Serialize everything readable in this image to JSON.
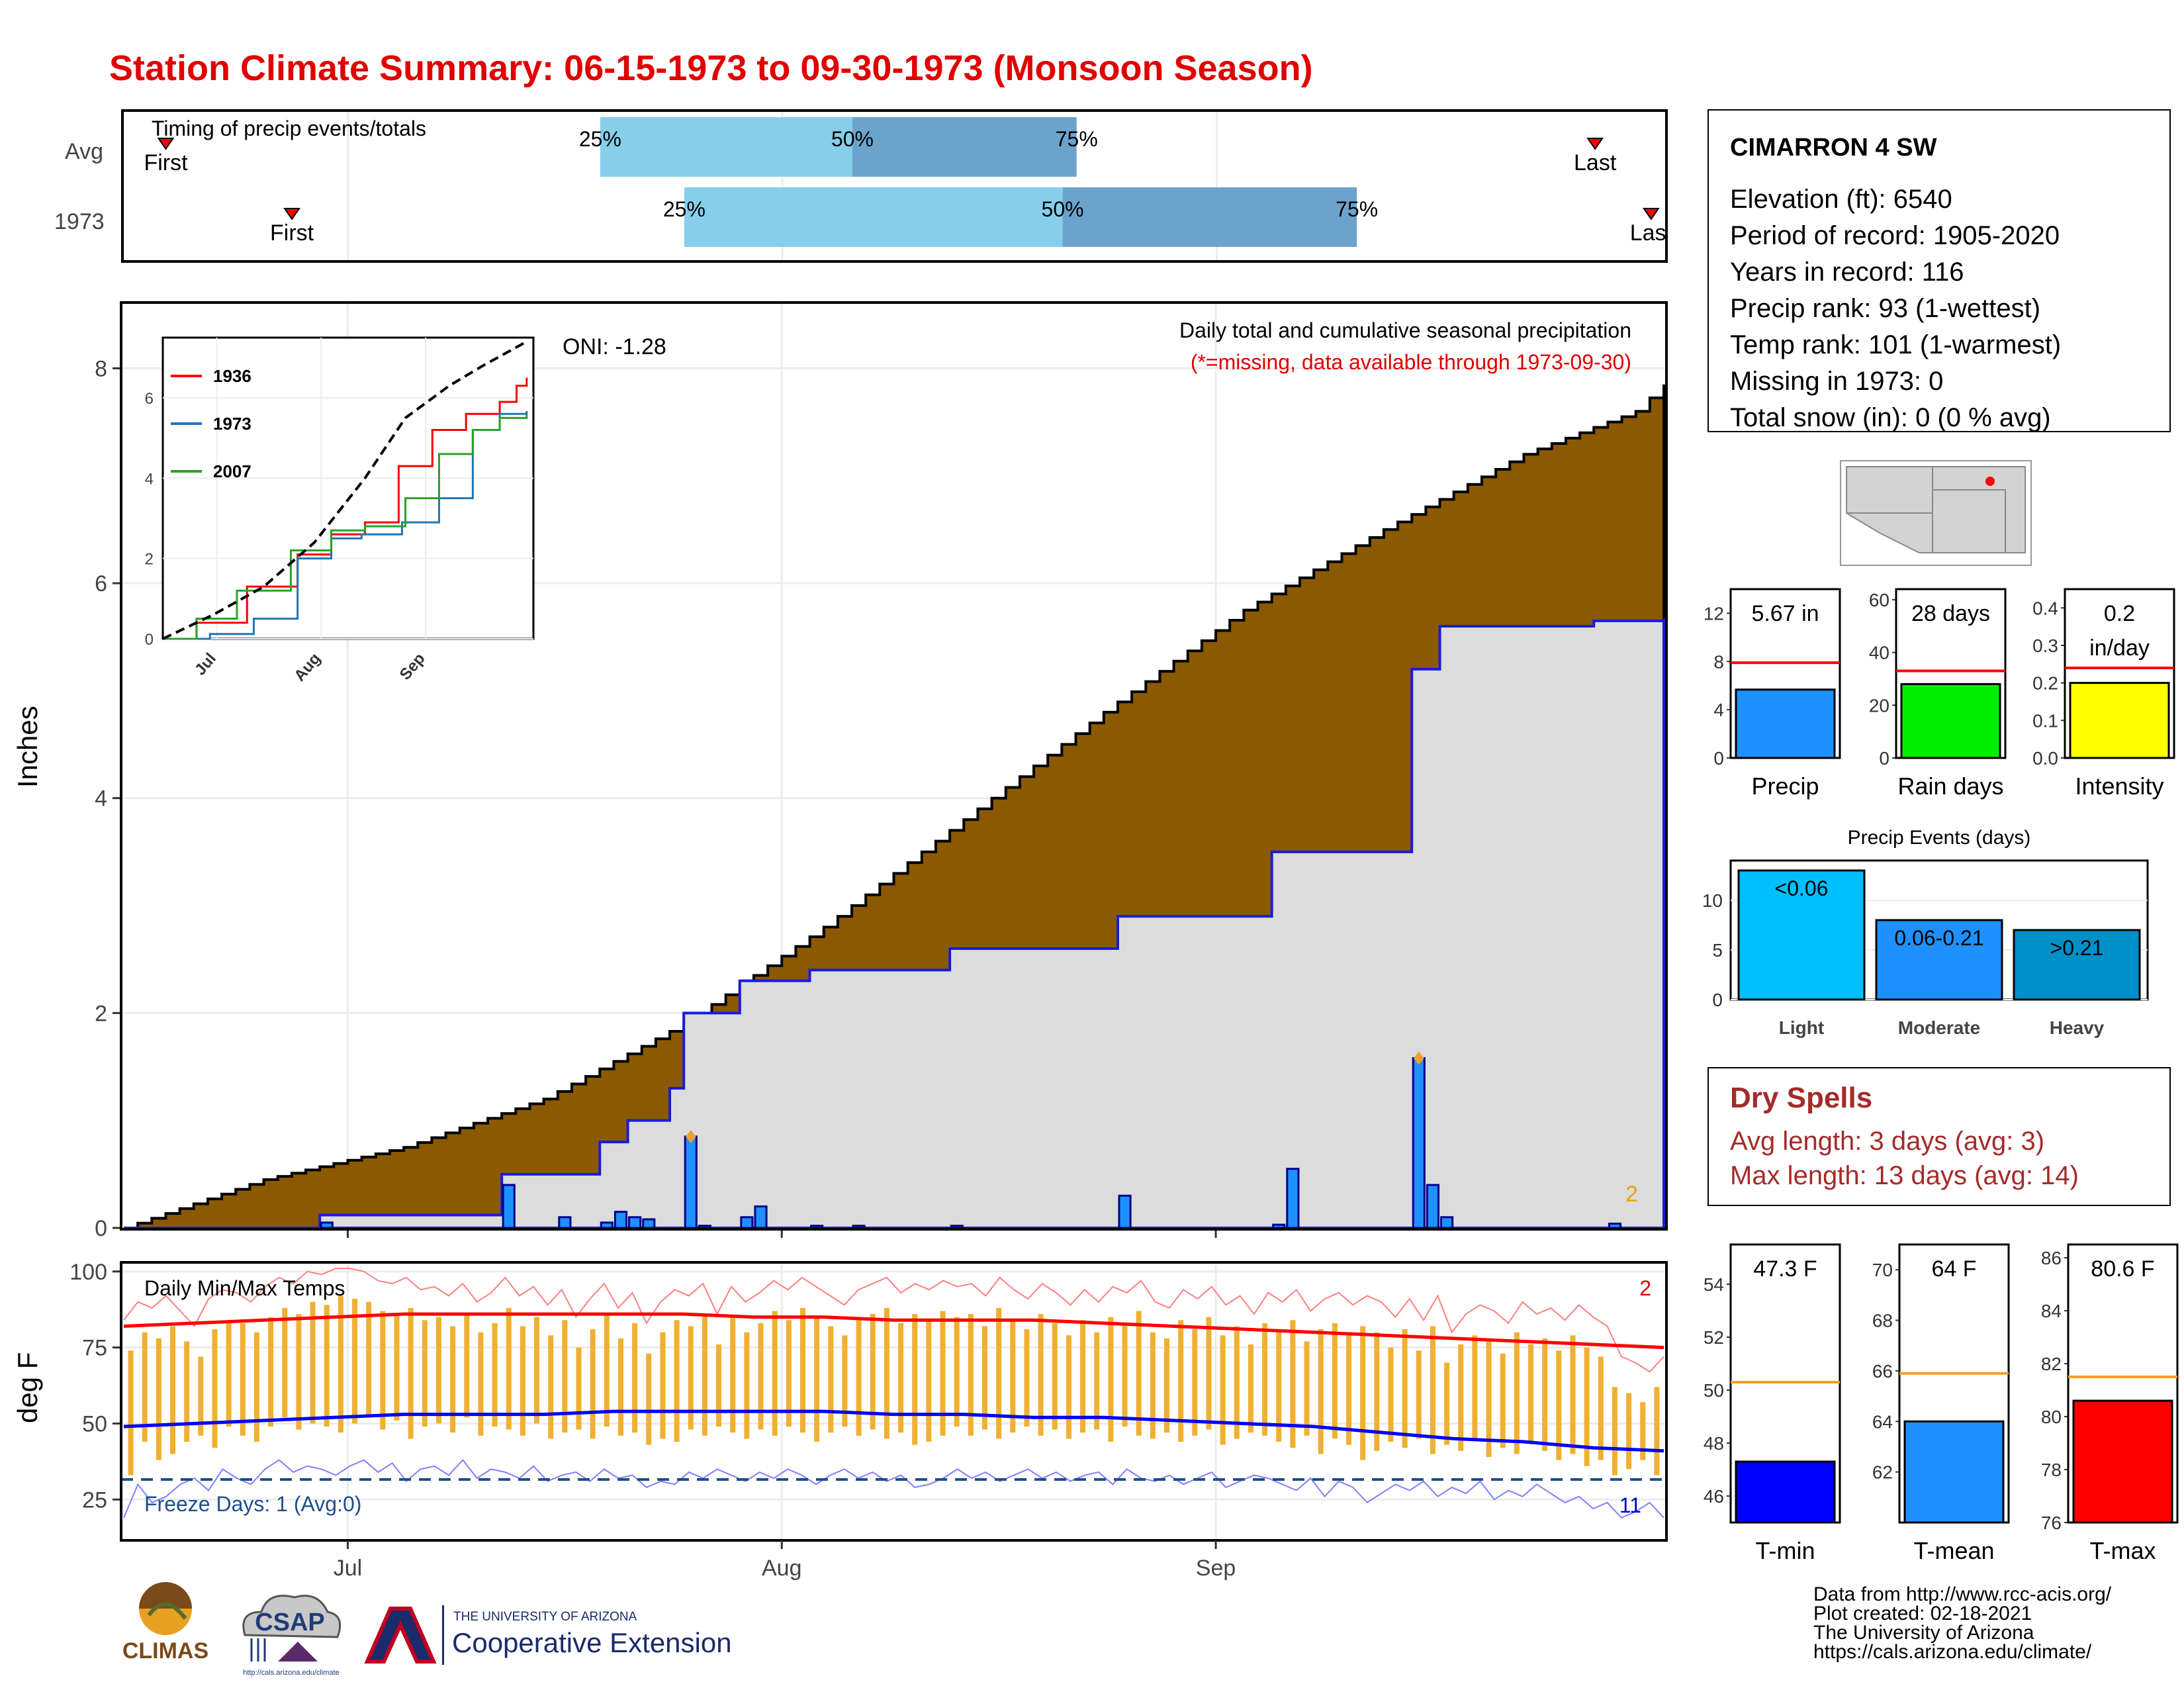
{
  "title": "Station Climate Summary: 06-15-1973 to 09-30-1973 (Monsoon Season)",
  "colors": {
    "title": "#e00000",
    "cum_avg": "#8b5a00",
    "cum_year": "#dcdcdc",
    "daily_bar": "#1e90ff",
    "line_blue": "#0000cc",
    "temp_bar": "#f0b030",
    "t_max": "#ff0000",
    "t_min": "#0000ff",
    "freeze": "#1f4e8c",
    "dry_spells": "#a52a2a"
  },
  "timing": {
    "label": "Timing of precip events/totals",
    "rows": [
      {
        "name": "Avg",
        "first_day": 3,
        "last_day": 105,
        "p25": 34,
        "p50": 52,
        "p75": 68,
        "first_label": "First",
        "last_label": "Last",
        "p25_label": "25%",
        "p50_label": "50%",
        "p75_label": "75%"
      },
      {
        "name": "1973",
        "first_day": 12,
        "last_day": 109,
        "p25": 40,
        "p50": 67,
        "p75": 88,
        "first_label": "First",
        "last_label": "Last",
        "p25_label": "25%",
        "p50_label": "50%",
        "p75_label": "75%"
      }
    ]
  },
  "main": {
    "title": "Daily total and cumulative seasonal precipitation",
    "subtitle": "(*=missing, data available through 1973-09-30)",
    "oni": "ONI: -1.28",
    "ylabel": "Inches",
    "yticks": [
      "0",
      "2",
      "4",
      "6",
      "8"
    ],
    "xticks": [
      "Jul",
      "Aug",
      "Sep"
    ],
    "corner_label": "2"
  },
  "temps": {
    "title": "Daily Min/Max Temps",
    "ylabel": "deg F",
    "yticks": [
      "25",
      "50",
      "75",
      "100"
    ],
    "freeze": "Freeze Days: 1 (Avg:0)",
    "max_count": "2",
    "min_count": "11"
  },
  "inset": {
    "legend": [
      "1936",
      "1973",
      "2007"
    ],
    "yticks": [
      "0",
      "2",
      "4",
      "6"
    ],
    "xticks": [
      "Jul",
      "Aug",
      "Sep"
    ]
  },
  "station": {
    "name": "CIMARRON 4 SW",
    "elevation": "Elevation (ft): 6540",
    "period": "Period of record: 1905-2020",
    "years": "Years in record: 116",
    "precip_rank": "Precip rank: 93 (1-wettest)",
    "temp_rank": "Temp rank: 101 (1-warmest)",
    "missing": "Missing in 1973: 0",
    "snow": "Total snow (in): 0 (0 % avg)"
  },
  "mini_bars": [
    {
      "label": "Precip",
      "value_label": "5.67 in",
      "value": 5.67,
      "avg": 7.9,
      "ymax": 14,
      "ticks": [
        "0",
        "4",
        "8",
        "12"
      ],
      "color": "#1e90ff"
    },
    {
      "label": "Rain days",
      "value_label": "28 days",
      "value": 28,
      "avg": 33,
      "ymax": 64,
      "ticks": [
        "0",
        "20",
        "40",
        "60"
      ],
      "color": "#00ee00"
    },
    {
      "label": "Intensity",
      "value_label": "0.2 in/day",
      "value": 0.2,
      "avg": 0.24,
      "ymax": 0.45,
      "ticks": [
        "0.0",
        "0.1",
        "0.2",
        "0.3",
        "0.4"
      ],
      "color": "#ffff00"
    }
  ],
  "precip_events": {
    "title": "Precip Events (days)",
    "categories": [
      "Light",
      "Moderate",
      "Heavy"
    ],
    "bar_labels": [
      "<0.06",
      "0.06-0.21",
      ">0.21"
    ],
    "values": [
      13,
      8,
      7
    ],
    "ticks": [
      "0",
      "5",
      "10"
    ],
    "colors": [
      "#00bfff",
      "#1e90ff",
      "#0090c8"
    ]
  },
  "dry_spells": {
    "title": "Dry Spells",
    "avg": "Avg length: 3 days (avg: 3)",
    "max": "Max length: 13 days (avg: 14)"
  },
  "temp_bars": [
    {
      "label": "T-min",
      "value_label": "47.3 F",
      "value": 47.3,
      "avg": 50.3,
      "ylim": [
        45,
        55.5
      ],
      "ticks": [
        "46",
        "48",
        "50",
        "52",
        "54"
      ],
      "color": "#0000ff"
    },
    {
      "label": "T-mean",
      "value_label": "64 F",
      "value": 64,
      "avg": 65.9,
      "ylim": [
        60,
        71
      ],
      "ticks": [
        "62",
        "64",
        "66",
        "68",
        "70"
      ],
      "color": "#1e90ff"
    },
    {
      "label": "T-max",
      "value_label": "80.6 F",
      "value": 80.6,
      "avg": 81.5,
      "ylim": [
        76,
        86.5
      ],
      "ticks": [
        "76",
        "78",
        "80",
        "82",
        "84",
        "86"
      ],
      "color": "#ff0000"
    }
  ],
  "credits": [
    "Data from http://www.rcc-acis.org/",
    "Plot created: 02-18-2021",
    "The University of Arizona",
    "https://cals.arizona.edu/climate/"
  ],
  "logos": {
    "climas": "CLIMAS",
    "csap": "CSAP",
    "csap_url": "http://cals.arizona.edu/climate",
    "ua_small": "THE UNIVERSITY OF ARIZONA",
    "ua_big": "Cooperative Extension"
  },
  "chart_data": [
    {
      "type": "area",
      "title": "Daily total and cumulative seasonal precipitation",
      "ylabel": "Inches",
      "ylim": [
        0,
        8.6
      ],
      "x_start": "1973-06-15",
      "x_end": "1973-09-30",
      "series": [
        {
          "name": "",
          "cumulative_average": [
            [
              0,
              0
            ],
            [
              10,
              0.45
            ],
            [
              20,
              0.75
            ],
            [
              30,
              1.2
            ],
            [
              40,
              1.9
            ],
            [
              50,
              2.8
            ],
            [
              60,
              3.8
            ],
            [
              70,
              4.8
            ],
            [
              80,
              5.75
            ],
            [
              90,
              6.5
            ],
            [
              100,
              7.2
            ],
            [
              108,
              7.6
            ],
            [
              110,
              7.85
            ]
          ]
        },
        {
          "name": "",
          "cumulative_1973": [
            [
              0,
              0
            ],
            [
              14,
              0.12
            ],
            [
              26,
              0.12
            ],
            [
              27,
              0.5
            ],
            [
              34,
              0.8
            ],
            [
              36,
              1.0
            ],
            [
              39,
              1.3
            ],
            [
              40,
              2.0
            ],
            [
              44,
              2.3
            ],
            [
              49,
              2.4
            ],
            [
              59,
              2.6
            ],
            [
              71,
              2.9
            ],
            [
              82,
              3.5
            ],
            [
              92,
              5.2
            ],
            [
              94,
              5.6
            ],
            [
              105,
              5.65
            ],
            [
              110,
              5.67
            ]
          ]
        },
        {
          "name": "",
          "daily": [
            [
              14,
              0.05
            ],
            [
              27,
              0.4
            ],
            [
              31,
              0.1
            ],
            [
              34,
              0.05
            ],
            [
              35,
              0.15
            ],
            [
              36,
              0.1
            ],
            [
              37,
              0.08
            ],
            [
              40,
              0.85
            ],
            [
              41,
              0.02
            ],
            [
              44,
              0.1
            ],
            [
              45,
              0.2
            ],
            [
              49,
              0.02
            ],
            [
              52,
              0.02
            ],
            [
              59,
              0.02
            ],
            [
              71,
              0.3
            ],
            [
              82,
              0.03
            ],
            [
              83,
              0.55
            ],
            [
              92,
              1.58
            ],
            [
              93,
              0.4
            ],
            [
              94,
              0.1
            ],
            [
              106,
              0.04
            ]
          ]
        }
      ]
    },
    {
      "type": "line",
      "title": "",
      "categories": [
        "Jul",
        "Aug",
        "Sep"
      ],
      "ylim": [
        0,
        7.5
      ],
      "series": [
        {
          "name": "1936",
          "values": [
            [
              0,
              0
            ],
            [
              10,
              0.4
            ],
            [
              25,
              1.3
            ],
            [
              40,
              2.1
            ],
            [
              50,
              2.6
            ],
            [
              60,
              2.9
            ],
            [
              70,
              4.3
            ],
            [
              80,
              5.2
            ],
            [
              90,
              5.6
            ],
            [
              100,
              5.9
            ],
            [
              105,
              6.3
            ],
            [
              108,
              6.5
            ]
          ]
        },
        {
          "name": "1973",
          "values": [
            [
              0,
              0
            ],
            [
              14,
              0.12
            ],
            [
              27,
              0.5
            ],
            [
              40,
              2.0
            ],
            [
              50,
              2.5
            ],
            [
              59,
              2.6
            ],
            [
              71,
              2.9
            ],
            [
              82,
              3.5
            ],
            [
              92,
              5.2
            ],
            [
              100,
              5.6
            ],
            [
              108,
              5.67
            ]
          ]
        },
        {
          "name": "2007",
          "values": [
            [
              0,
              0
            ],
            [
              10,
              0.5
            ],
            [
              22,
              1.2
            ],
            [
              38,
              2.2
            ],
            [
              50,
              2.7
            ],
            [
              60,
              2.8
            ],
            [
              72,
              3.5
            ],
            [
              82,
              4.6
            ],
            [
              92,
              5.2
            ],
            [
              100,
              5.5
            ],
            [
              108,
              5.6
            ]
          ]
        },
        {
          "name": "",
          "values": [
            [
              0,
              0
            ],
            [
              15,
              0.6
            ],
            [
              30,
              1.3
            ],
            [
              45,
              2.4
            ],
            [
              60,
              4.0
            ],
            [
              72,
              5.5
            ],
            [
              85,
              6.3
            ],
            [
              95,
              6.8
            ],
            [
              108,
              7.4
            ]
          ]
        }
      ]
    },
    {
      "type": "bar",
      "title": "Daily Min/Max Temps",
      "ylabel": "deg F",
      "ylim": [
        12,
        103
      ],
      "series": [
        {
          "name": "",
          "tmax": [
            74,
            80,
            78,
            82,
            77,
            72,
            81,
            84,
            83,
            80,
            85,
            88,
            86,
            90,
            89,
            92,
            91,
            90,
            87,
            86,
            88,
            84,
            85,
            82,
            86,
            80,
            83,
            88,
            82,
            85,
            79,
            84,
            75,
            81,
            86,
            78,
            83,
            73,
            80,
            84,
            82,
            86,
            76,
            85,
            80,
            83,
            87,
            84,
            88,
            85,
            82,
            79,
            84,
            86,
            88,
            83,
            86,
            84,
            87,
            85,
            86,
            82,
            88,
            84,
            81,
            86,
            83,
            79,
            84,
            80,
            85,
            83,
            87,
            80,
            78,
            84,
            81,
            85,
            79,
            82,
            76,
            83,
            80,
            84,
            77,
            81,
            83,
            79,
            82,
            80,
            75,
            81,
            74,
            82,
            70,
            76,
            79,
            77,
            73,
            80,
            76,
            78,
            74,
            79,
            75,
            72,
            62,
            60,
            57,
            62
          ]
        },
        {
          "name": "",
          "tmin": [
            33,
            44,
            38,
            40,
            44,
            46,
            42,
            49,
            46,
            44,
            49,
            52,
            48,
            50,
            49,
            47,
            50,
            52,
            48,
            51,
            45,
            49,
            50,
            47,
            52,
            46,
            49,
            48,
            46,
            50,
            45,
            47,
            48,
            45,
            49,
            46,
            47,
            43,
            45,
            44,
            48,
            46,
            49,
            47,
            45,
            48,
            46,
            49,
            47,
            44,
            47,
            49,
            46,
            48,
            45,
            47,
            43,
            44,
            46,
            49,
            46,
            48,
            45,
            47,
            49,
            46,
            48,
            45,
            47,
            48,
            44,
            49,
            46,
            45,
            47,
            44,
            46,
            48,
            43,
            45,
            47,
            46,
            44,
            42,
            46,
            40,
            45,
            43,
            38,
            41,
            44,
            42,
            45,
            40,
            43,
            41,
            45,
            39,
            42,
            40,
            44,
            41,
            38,
            40,
            36,
            38,
            33,
            35,
            38,
            33
          ]
        },
        {
          "name": "",
          "normal_max": [
            82,
            83,
            84,
            85,
            86,
            86,
            86,
            86,
            86,
            85,
            85,
            84,
            84,
            84,
            83,
            82,
            81,
            80,
            79,
            78,
            77,
            76,
            75
          ]
        },
        {
          "name": "",
          "normal_min": [
            49,
            50,
            51,
            52,
            53,
            53,
            53,
            54,
            54,
            54,
            54,
            53,
            53,
            52,
            52,
            51,
            50,
            49,
            47,
            45,
            44,
            42,
            41
          ]
        }
      ]
    },
    {
      "type": "bar",
      "title": "Precip Events (days)",
      "categories": [
        "Light",
        "Moderate",
        "Heavy"
      ],
      "values": [
        13,
        8,
        7
      ]
    },
    {
      "type": "bar",
      "categories": [
        "Precip",
        "Rain days",
        "Intensity"
      ],
      "values": [
        5.67,
        28,
        0.2
      ]
    },
    {
      "type": "bar",
      "categories": [
        "T-min",
        "T-mean",
        "T-max"
      ],
      "values": [
        47.3,
        64,
        80.6
      ]
    }
  ]
}
